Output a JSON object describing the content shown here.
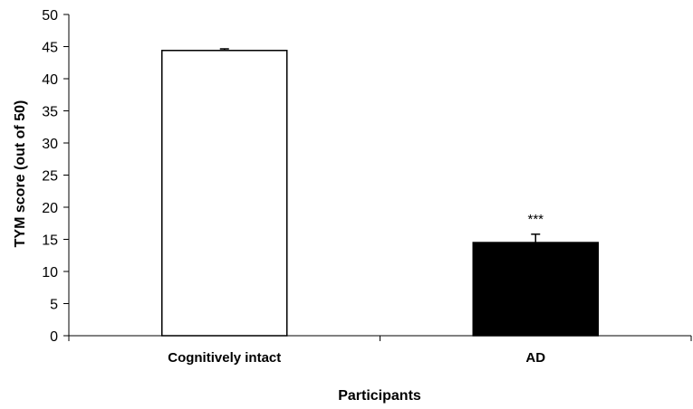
{
  "chart_data": {
    "type": "bar",
    "categories": [
      "Cognitively intact",
      "AD"
    ],
    "values": [
      44.4,
      14.5
    ],
    "error_bars": [
      0.25,
      1.3
    ],
    "bar_fills": [
      "#ffffff",
      "#000000"
    ],
    "bar_stroke": "#000000",
    "annotations": [
      {
        "category": "AD",
        "text": "***"
      }
    ],
    "title": "",
    "xlabel": "Participants",
    "ylabel": "TYM score (out of 50)",
    "ylim": [
      0,
      50
    ],
    "yticks": [
      0,
      5,
      10,
      15,
      20,
      25,
      30,
      35,
      40,
      45,
      50
    ],
    "grid": false,
    "legend": "none"
  }
}
